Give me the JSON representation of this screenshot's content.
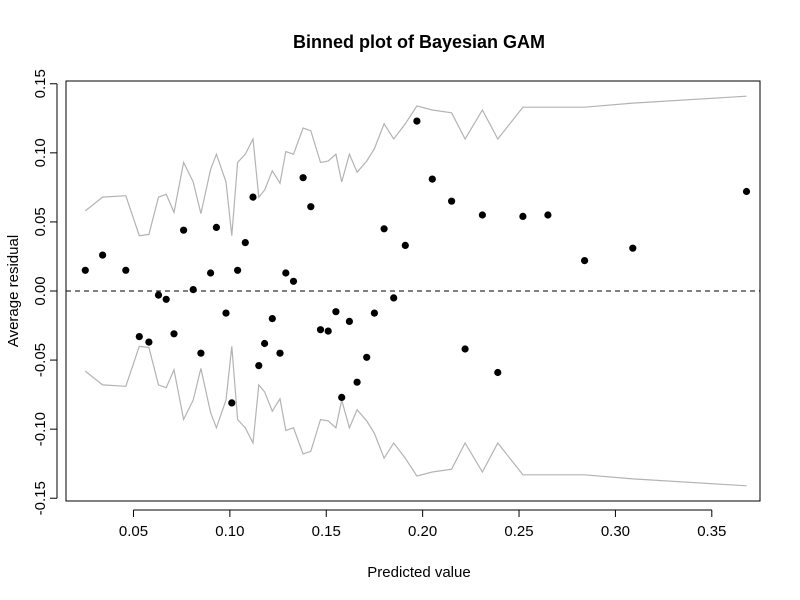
{
  "chart_data": {
    "type": "scatter",
    "title": "Binned plot of Bayesian GAM",
    "xlabel": "Predicted value",
    "ylabel": "Average residual",
    "xlim": [
      0.015,
      0.375
    ],
    "ylim": [
      -0.152,
      0.152
    ],
    "x_ticks": [
      0.05,
      0.1,
      0.15,
      0.2,
      0.25,
      0.3,
      0.35
    ],
    "x_tick_labels": [
      "0.05",
      "0.10",
      "0.15",
      "0.20",
      "0.25",
      "0.30",
      "0.35"
    ],
    "y_ticks": [
      -0.15,
      -0.1,
      -0.05,
      0.0,
      0.05,
      0.1,
      0.15
    ],
    "y_tick_labels": [
      "-0.15",
      "-0.10",
      "-0.05",
      "0.00",
      "0.05",
      "0.10",
      "0.15"
    ],
    "reference_line": {
      "y": 0,
      "style": "dashed",
      "color": "#000000"
    },
    "band": {
      "color": "#b3b3b3",
      "x": [
        0.025,
        0.034,
        0.046,
        0.053,
        0.058,
        0.063,
        0.067,
        0.071,
        0.076,
        0.081,
        0.085,
        0.09,
        0.093,
        0.098,
        0.101,
        0.104,
        0.108,
        0.112,
        0.115,
        0.118,
        0.122,
        0.126,
        0.129,
        0.133,
        0.138,
        0.142,
        0.147,
        0.151,
        0.155,
        0.158,
        0.162,
        0.166,
        0.171,
        0.175,
        0.18,
        0.185,
        0.191,
        0.197,
        0.205,
        0.215,
        0.222,
        0.231,
        0.239,
        0.252,
        0.265,
        0.284,
        0.309,
        0.368
      ],
      "upper": [
        0.058,
        0.068,
        0.069,
        0.04,
        0.041,
        0.068,
        0.07,
        0.057,
        0.093,
        0.079,
        0.056,
        0.088,
        0.099,
        0.079,
        0.04,
        0.093,
        0.099,
        0.11,
        0.068,
        0.073,
        0.087,
        0.078,
        0.101,
        0.099,
        0.118,
        0.116,
        0.093,
        0.094,
        0.099,
        0.079,
        0.099,
        0.086,
        0.094,
        0.103,
        0.121,
        0.11,
        0.121,
        0.134,
        0.131,
        0.129,
        0.11,
        0.131,
        0.11,
        0.133,
        0.133,
        0.133,
        0.136,
        0.141
      ],
      "lower": [
        -0.058,
        -0.068,
        -0.069,
        -0.04,
        -0.041,
        -0.068,
        -0.07,
        -0.057,
        -0.093,
        -0.079,
        -0.056,
        -0.088,
        -0.099,
        -0.079,
        -0.04,
        -0.093,
        -0.099,
        -0.11,
        -0.068,
        -0.073,
        -0.087,
        -0.078,
        -0.101,
        -0.099,
        -0.118,
        -0.116,
        -0.093,
        -0.094,
        -0.099,
        -0.079,
        -0.099,
        -0.086,
        -0.094,
        -0.103,
        -0.121,
        -0.11,
        -0.121,
        -0.134,
        -0.131,
        -0.129,
        -0.11,
        -0.131,
        -0.11,
        -0.133,
        -0.133,
        -0.133,
        -0.136,
        -0.141
      ]
    },
    "series": [
      {
        "x": [
          0.025,
          0.034,
          0.046,
          0.053,
          0.058,
          0.063,
          0.067,
          0.071,
          0.076,
          0.081,
          0.085,
          0.09,
          0.093,
          0.098,
          0.101,
          0.104,
          0.108,
          0.112,
          0.115,
          0.118,
          0.122,
          0.126,
          0.129,
          0.133,
          0.138,
          0.142,
          0.147,
          0.151,
          0.155,
          0.158,
          0.162,
          0.166,
          0.171,
          0.175,
          0.18,
          0.185,
          0.191,
          0.197,
          0.205,
          0.215,
          0.222,
          0.231,
          0.239,
          0.252,
          0.265,
          0.284,
          0.309,
          0.368
        ],
        "y": [
          0.015,
          0.026,
          0.015,
          -0.033,
          -0.037,
          -0.003,
          -0.006,
          -0.031,
          0.044,
          0.001,
          -0.045,
          0.013,
          0.046,
          -0.016,
          -0.081,
          0.015,
          0.035,
          0.068,
          -0.054,
          -0.038,
          -0.02,
          -0.045,
          0.013,
          0.007,
          0.082,
          0.061,
          -0.028,
          -0.029,
          -0.015,
          -0.077,
          -0.022,
          -0.066,
          -0.048,
          -0.016,
          0.045,
          -0.005,
          0.033,
          0.123,
          0.081,
          0.065,
          -0.042,
          0.055,
          -0.059,
          0.054,
          0.055,
          0.022,
          0.031,
          0.072
        ]
      }
    ]
  }
}
